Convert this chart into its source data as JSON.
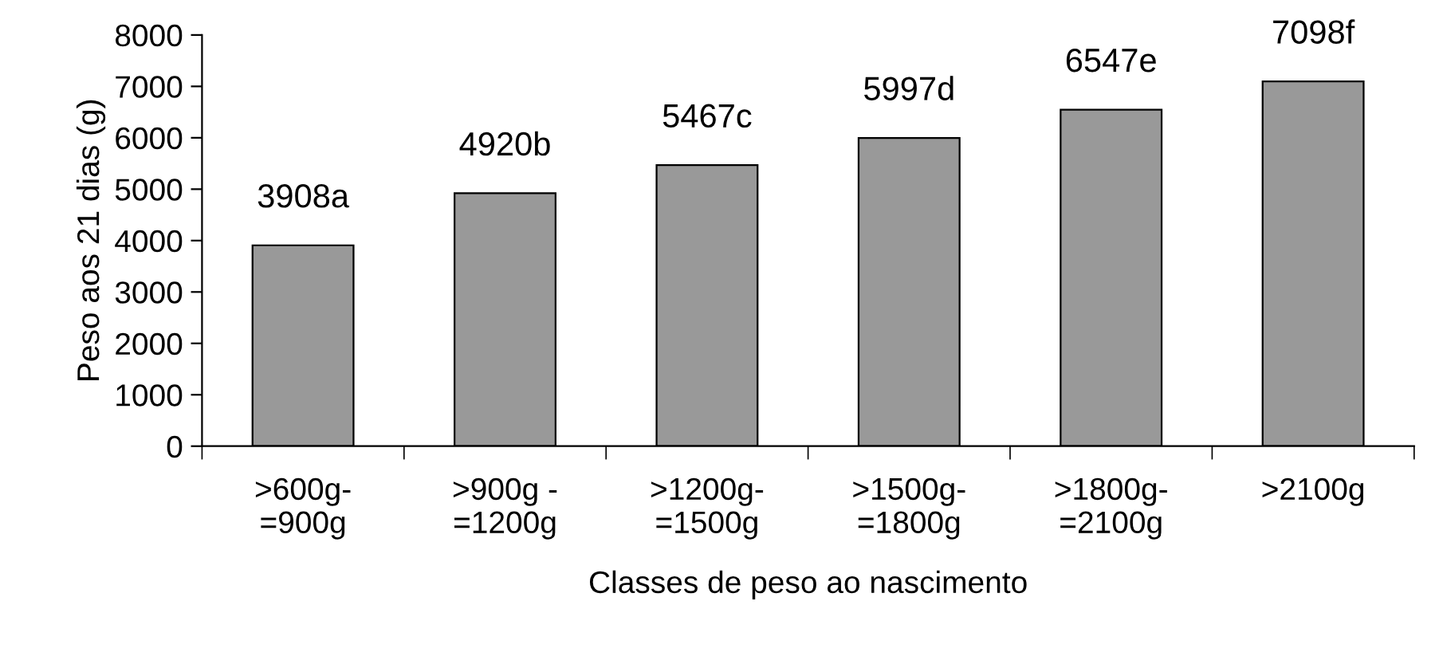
{
  "chart_data": {
    "type": "bar",
    "categories": [
      ">600g-\n=900g",
      ">900g -\n=1200g",
      ">1200g-\n=1500g",
      ">1500g-\n=1800g",
      ">1800g-\n=2100g",
      ">2100g"
    ],
    "values": [
      3908,
      4920,
      5467,
      5997,
      6547,
      7098
    ],
    "value_labels": [
      "3908a",
      "4920b",
      "5467c",
      "5997d",
      "6547e",
      "7098f"
    ],
    "color": "#999999",
    "xlabel": "Classes de peso ao nascimento",
    "ylabel": "Peso aos 21 dias (g)",
    "ylim": [
      0,
      8000
    ],
    "yticks": [
      0,
      1000,
      2000,
      3000,
      4000,
      5000,
      6000,
      7000,
      8000
    ],
    "grid": false
  }
}
